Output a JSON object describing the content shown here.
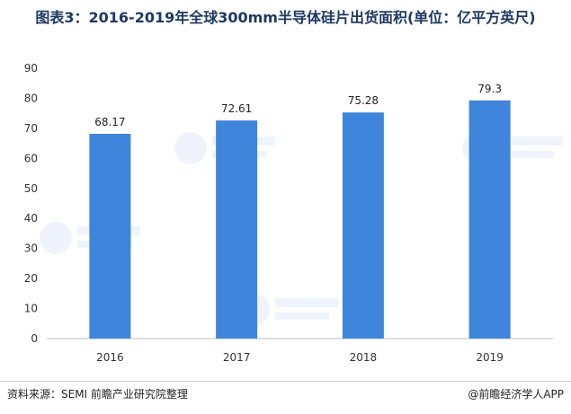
{
  "title": "图表3：2016-2019年全球300mm半导体硅片出货面积(单位：亿平方英尺)",
  "footer": {
    "source": "资料来源：SEMI 前瞻产业研究院整理",
    "credit": "@前瞻经济学人APP"
  },
  "colors": {
    "bar": "#3f85db",
    "title": "#1f3864",
    "axis": "#333333"
  },
  "chart_data": {
    "type": "bar",
    "title": "图表3：2016-2019年全球300mm半导体硅片出货面积(单位：亿平方英尺)",
    "categories": [
      "2016",
      "2017",
      "2018",
      "2019"
    ],
    "values": [
      68.17,
      72.61,
      75.28,
      79.3
    ],
    "value_labels": [
      "68.17",
      "72.61",
      "75.28",
      "79.3"
    ],
    "yticks": [
      "0",
      "10",
      "20",
      "30",
      "40",
      "50",
      "60",
      "70",
      "80",
      "90"
    ],
    "ylim": [
      0,
      90
    ],
    "xlabel": "",
    "ylabel": "",
    "grid": false,
    "legend": "none"
  }
}
